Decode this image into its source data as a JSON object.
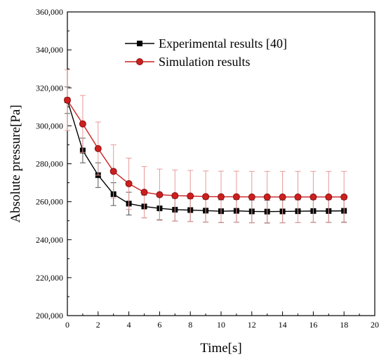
{
  "chart_data": {
    "type": "line",
    "xlabel": "Time[s]",
    "ylabel": "Absolute pressure[Pa]",
    "xlim": [
      0,
      20
    ],
    "ylim": [
      200000,
      360000
    ],
    "x_ticks": [
      "0",
      "2",
      "4",
      "6",
      "8",
      "10",
      "12",
      "14",
      "16",
      "18",
      "20"
    ],
    "y_ticks": [
      "200,000",
      "220,000",
      "240,000",
      "260,000",
      "280,000",
      "300,000",
      "320,000",
      "340,000",
      "360,000"
    ],
    "grid": false,
    "legend_position": "top",
    "series": [
      {
        "name": "Experimental results [40]",
        "color": "#000000",
        "marker": "square",
        "x": [
          0,
          1,
          2,
          3,
          4,
          5,
          6,
          7,
          8,
          9,
          10,
          11,
          12,
          13,
          14,
          15,
          16,
          17,
          18
        ],
        "y": [
          313500,
          287000,
          274000,
          264000,
          259000,
          257500,
          256500,
          255800,
          255600,
          255300,
          255000,
          255200,
          254900,
          254800,
          254900,
          255000,
          255100,
          255100,
          255200
        ],
        "error": [
          7000,
          6500,
          6500,
          6000,
          6000,
          6000,
          6000,
          6000,
          6000,
          6000,
          6000,
          6000,
          6000,
          6000,
          6000,
          6000,
          6000,
          6000,
          6000
        ]
      },
      {
        "name": "Simulation results",
        "color": "#cc1f1f",
        "marker": "circle",
        "x": [
          0,
          1,
          2,
          3,
          4,
          5,
          6,
          7,
          8,
          9,
          10,
          11,
          12,
          13,
          14,
          15,
          16,
          17,
          18
        ],
        "y": [
          313500,
          301000,
          288000,
          276000,
          269500,
          265000,
          263700,
          263200,
          263000,
          262700,
          262600,
          262600,
          262500,
          262500,
          262500,
          262500,
          262500,
          262500,
          262500
        ],
        "error": [
          16000,
          15000,
          14000,
          14000,
          13500,
          13500,
          13500,
          13500,
          13500,
          13500,
          13500,
          13500,
          13500,
          13500,
          13500,
          13500,
          13500,
          13500,
          13500
        ]
      }
    ]
  }
}
